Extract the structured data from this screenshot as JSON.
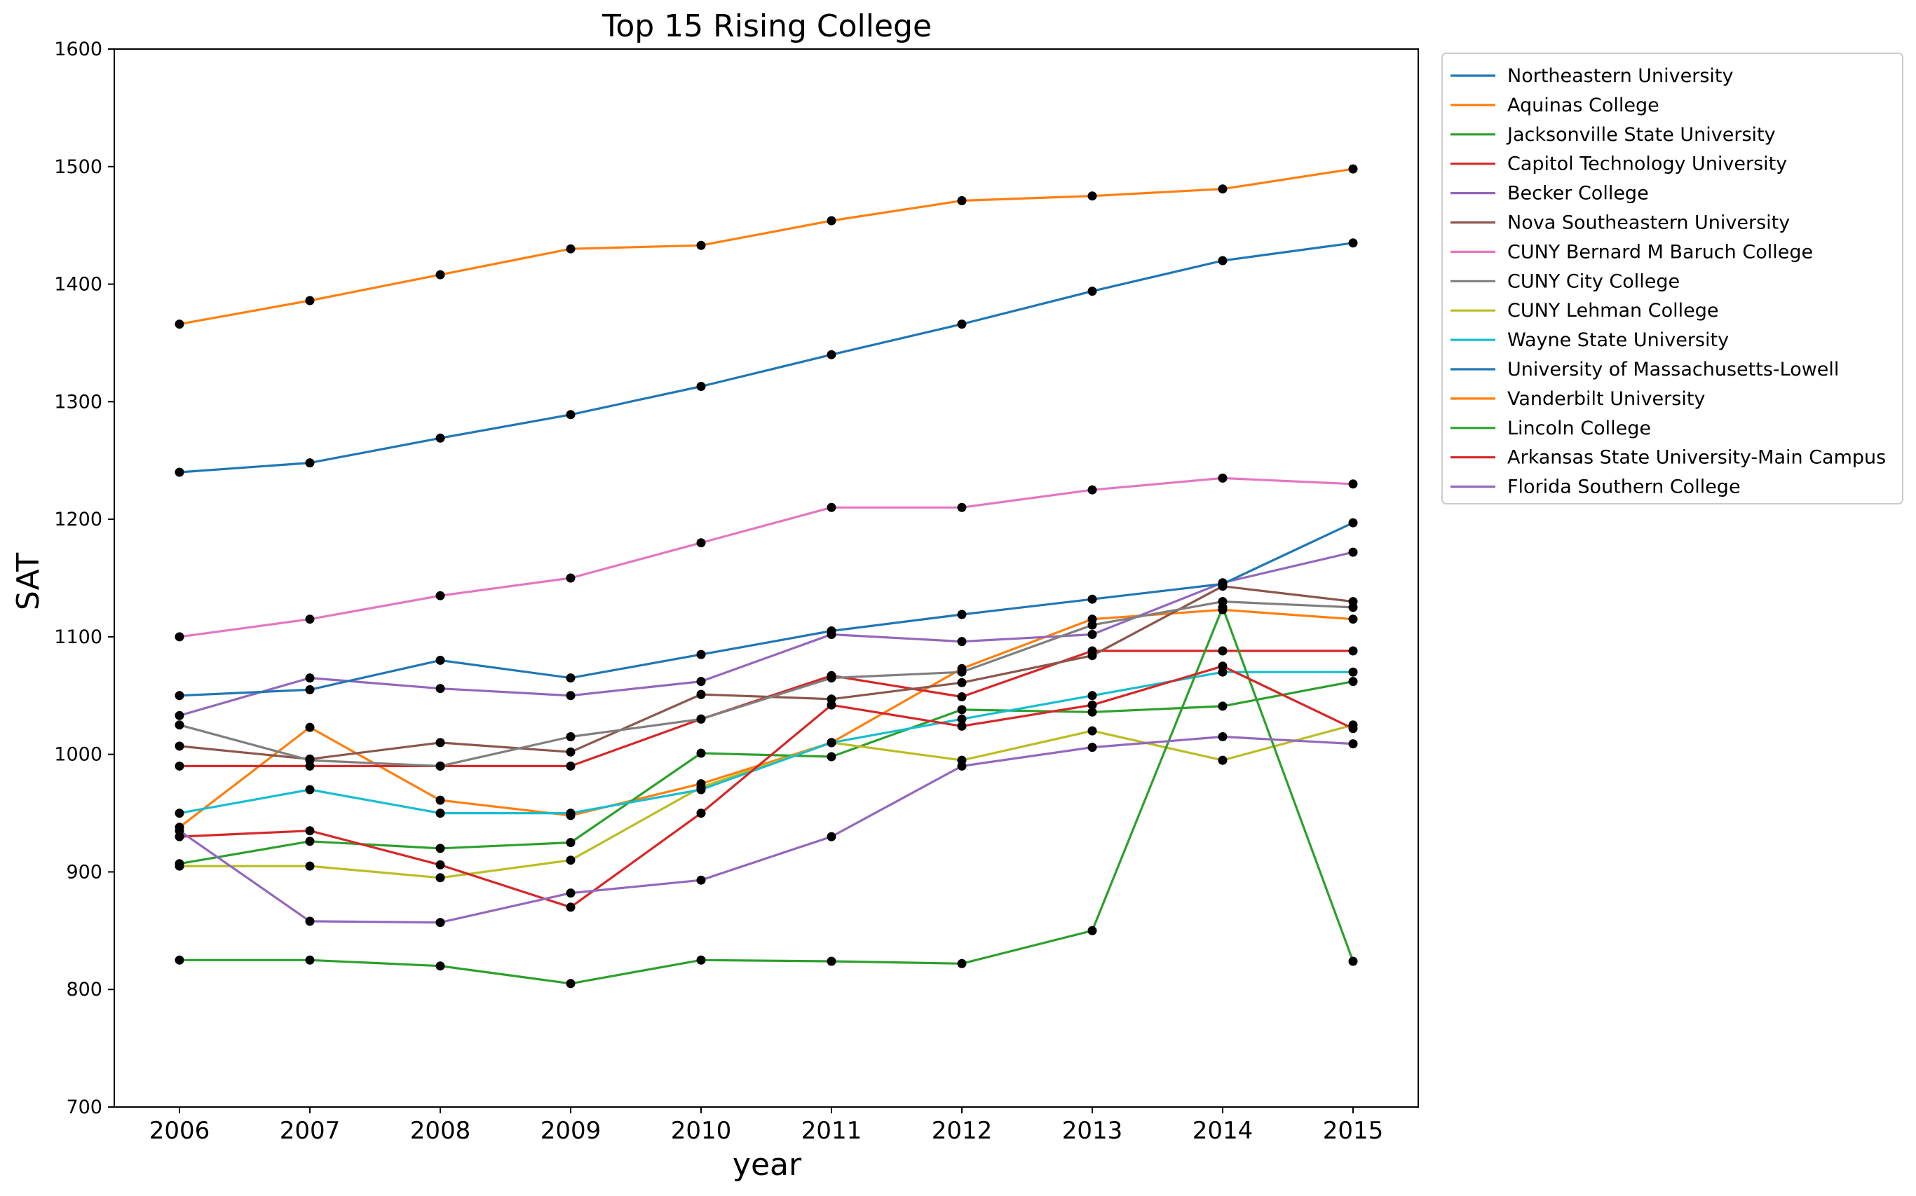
{
  "chart_data": {
    "type": "line",
    "title": "Top 15 Rising College",
    "xlabel": "year",
    "ylabel": "SAT",
    "x": [
      2006,
      2007,
      2008,
      2009,
      2010,
      2011,
      2012,
      2013,
      2014,
      2015
    ],
    "xlim": [
      2005.5,
      2015.5
    ],
    "ylim": [
      700,
      1600
    ],
    "yticks": [
      700,
      800,
      900,
      1000,
      1100,
      1200,
      1300,
      1400,
      1500,
      1600
    ],
    "grid": false,
    "legend_position": "outside-right",
    "marker_color": "#000000",
    "series": [
      {
        "name": "Northeastern University",
        "color": "#1f77b4",
        "values": [
          1240,
          1248,
          1269,
          1289,
          1313,
          1340,
          1366,
          1394,
          1420,
          1435
        ]
      },
      {
        "name": "Aquinas College",
        "color": "#ff7f0e",
        "values": [
          938,
          1023,
          961,
          948,
          975,
          1010,
          1073,
          1115,
          1123,
          1115
        ]
      },
      {
        "name": "Jacksonville State University",
        "color": "#2ca02c",
        "values": [
          907,
          926,
          920,
          925,
          1001,
          998,
          1038,
          1036,
          1041,
          1062
        ]
      },
      {
        "name": "Capitol Technology University",
        "color": "#d62728",
        "values": [
          990,
          990,
          990,
          990,
          1030,
          1067,
          1049,
          1088,
          1088,
          1088
        ]
      },
      {
        "name": "Becker College",
        "color": "#9467bd",
        "values": [
          1033,
          1065,
          1056,
          1050,
          1062,
          1102,
          1096,
          1102,
          1146,
          1172
        ]
      },
      {
        "name": "Nova Southeastern University",
        "color": "#8c564b",
        "values": [
          1007,
          996,
          1010,
          1002,
          1051,
          1047,
          1061,
          1084,
          1143,
          1130
        ]
      },
      {
        "name": "CUNY Bernard M Baruch College",
        "color": "#e377c2",
        "values": [
          1100,
          1115,
          1135,
          1150,
          1180,
          1210,
          1210,
          1225,
          1235,
          1230
        ]
      },
      {
        "name": "CUNY City College",
        "color": "#7f7f7f",
        "values": [
          1025,
          995,
          990,
          1015,
          1030,
          1065,
          1070,
          1110,
          1130,
          1125
        ]
      },
      {
        "name": "CUNY Lehman College",
        "color": "#bcbd22",
        "values": [
          905,
          905,
          895,
          910,
          972,
          1010,
          995,
          1020,
          995,
          1025
        ]
      },
      {
        "name": "Wayne State University",
        "color": "#17becf",
        "values": [
          950,
          970,
          950,
          950,
          970,
          1010,
          1030,
          1050,
          1070,
          1070
        ]
      },
      {
        "name": "University of Massachusetts-Lowell",
        "color": "#1f77b4",
        "values": [
          1050,
          1055,
          1080,
          1065,
          1085,
          1105,
          1119,
          1132,
          1145,
          1197
        ]
      },
      {
        "name": "Vanderbilt University",
        "color": "#ff7f0e",
        "values": [
          1366,
          1386,
          1408,
          1430,
          1433,
          1454,
          1471,
          1475,
          1481,
          1498
        ]
      },
      {
        "name": "Lincoln College",
        "color": "#2ca02c",
        "values": [
          825,
          825,
          820,
          805,
          825,
          824,
          822,
          850,
          1125,
          824
        ]
      },
      {
        "name": "Arkansas State University-Main Campus",
        "color": "#d62728",
        "values": [
          930,
          935,
          906,
          870,
          950,
          1042,
          1024,
          1042,
          1075,
          1022
        ]
      },
      {
        "name": "Florida Southern College",
        "color": "#9467bd",
        "values": [
          935,
          858,
          857,
          882,
          893,
          930,
          990,
          1006,
          1015,
          1009
        ]
      }
    ]
  }
}
